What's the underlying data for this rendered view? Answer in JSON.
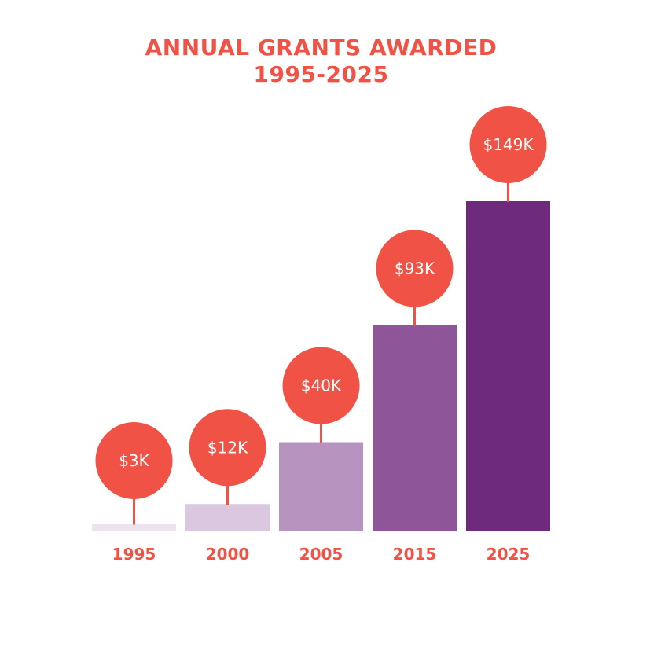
{
  "chart_data": {
    "type": "bar",
    "title": [
      "ANNUAL GRANTS AWARDED",
      "1995-2025"
    ],
    "xlabel": "",
    "ylabel": "",
    "unit": "USD thousands",
    "categories": [
      "1995",
      "2000",
      "2005",
      "2015",
      "2025"
    ],
    "values": [
      3,
      12,
      40,
      93,
      149
    ],
    "value_labels": [
      "$3K",
      "$12K",
      "$40K",
      "$93K",
      "$149K"
    ],
    "ylim": [
      0,
      149
    ],
    "grid": false,
    "legend": "none",
    "colors": {
      "accent": "#f05246",
      "bars": [
        "#ede3ef",
        "#dbc8e0",
        "#b794c0",
        "#8e5599",
        "#6e2a7c"
      ]
    }
  }
}
